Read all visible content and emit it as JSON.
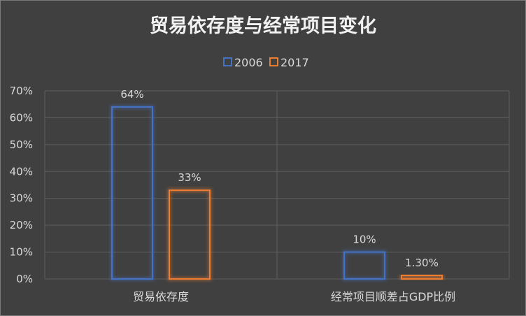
{
  "chart_data": {
    "type": "bar",
    "title": "贸易依存度与经常项目变化",
    "categories": [
      "贸易依存度",
      "经常项目顺差占GDP比例"
    ],
    "series": [
      {
        "name": "2006",
        "values": [
          64,
          10
        ],
        "labels": [
          "64%",
          "10%"
        ],
        "color": "#4472c4"
      },
      {
        "name": "2017",
        "values": [
          33,
          1.3
        ],
        "labels": [
          "33%",
          "1.30%"
        ],
        "color": "#ed7d31"
      }
    ],
    "ylim": [
      0,
      70
    ],
    "yticks": [
      "0%",
      "10%",
      "20%",
      "30%",
      "40%",
      "50%",
      "60%",
      "70%"
    ],
    "legend_position": "top",
    "grid": true
  }
}
